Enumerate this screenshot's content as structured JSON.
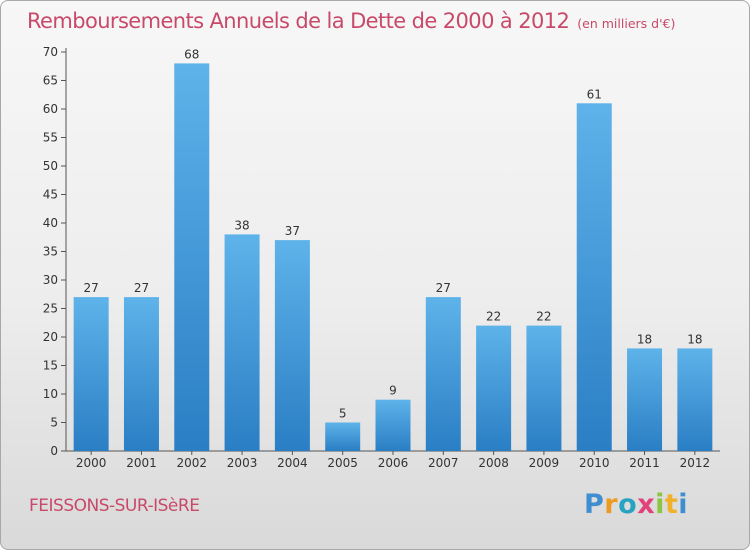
{
  "header": {
    "title": "Remboursements Annuels de la Dette de 2000 à 2012",
    "unit": "(en milliers d'€)"
  },
  "footer": {
    "commune": "FEISSONS-SUR-ISèRE",
    "logo_letters": [
      "P",
      "r",
      "o",
      "x",
      "i",
      "t",
      "i"
    ]
  },
  "colors": {
    "title": "#c8496a",
    "bar_top": "#5eb3ea",
    "bar_bottom": "#2a7ec4",
    "axis": "#555555",
    "text": "#333333"
  },
  "chart_data": {
    "type": "bar",
    "title": "Remboursements Annuels de la Dette de 2000 à 2012",
    "categories": [
      "2000",
      "2001",
      "2002",
      "2003",
      "2004",
      "2005",
      "2006",
      "2007",
      "2008",
      "2009",
      "2010",
      "2011",
      "2012"
    ],
    "values": [
      27,
      27,
      68,
      38,
      37,
      5,
      9,
      27,
      22,
      22,
      61,
      18,
      18
    ],
    "ylim": [
      0,
      70
    ],
    "yticks": [
      0,
      5,
      10,
      15,
      20,
      25,
      30,
      35,
      40,
      45,
      50,
      55,
      60,
      65,
      70
    ],
    "grid": false,
    "legend": "none",
    "data_labels": true
  }
}
